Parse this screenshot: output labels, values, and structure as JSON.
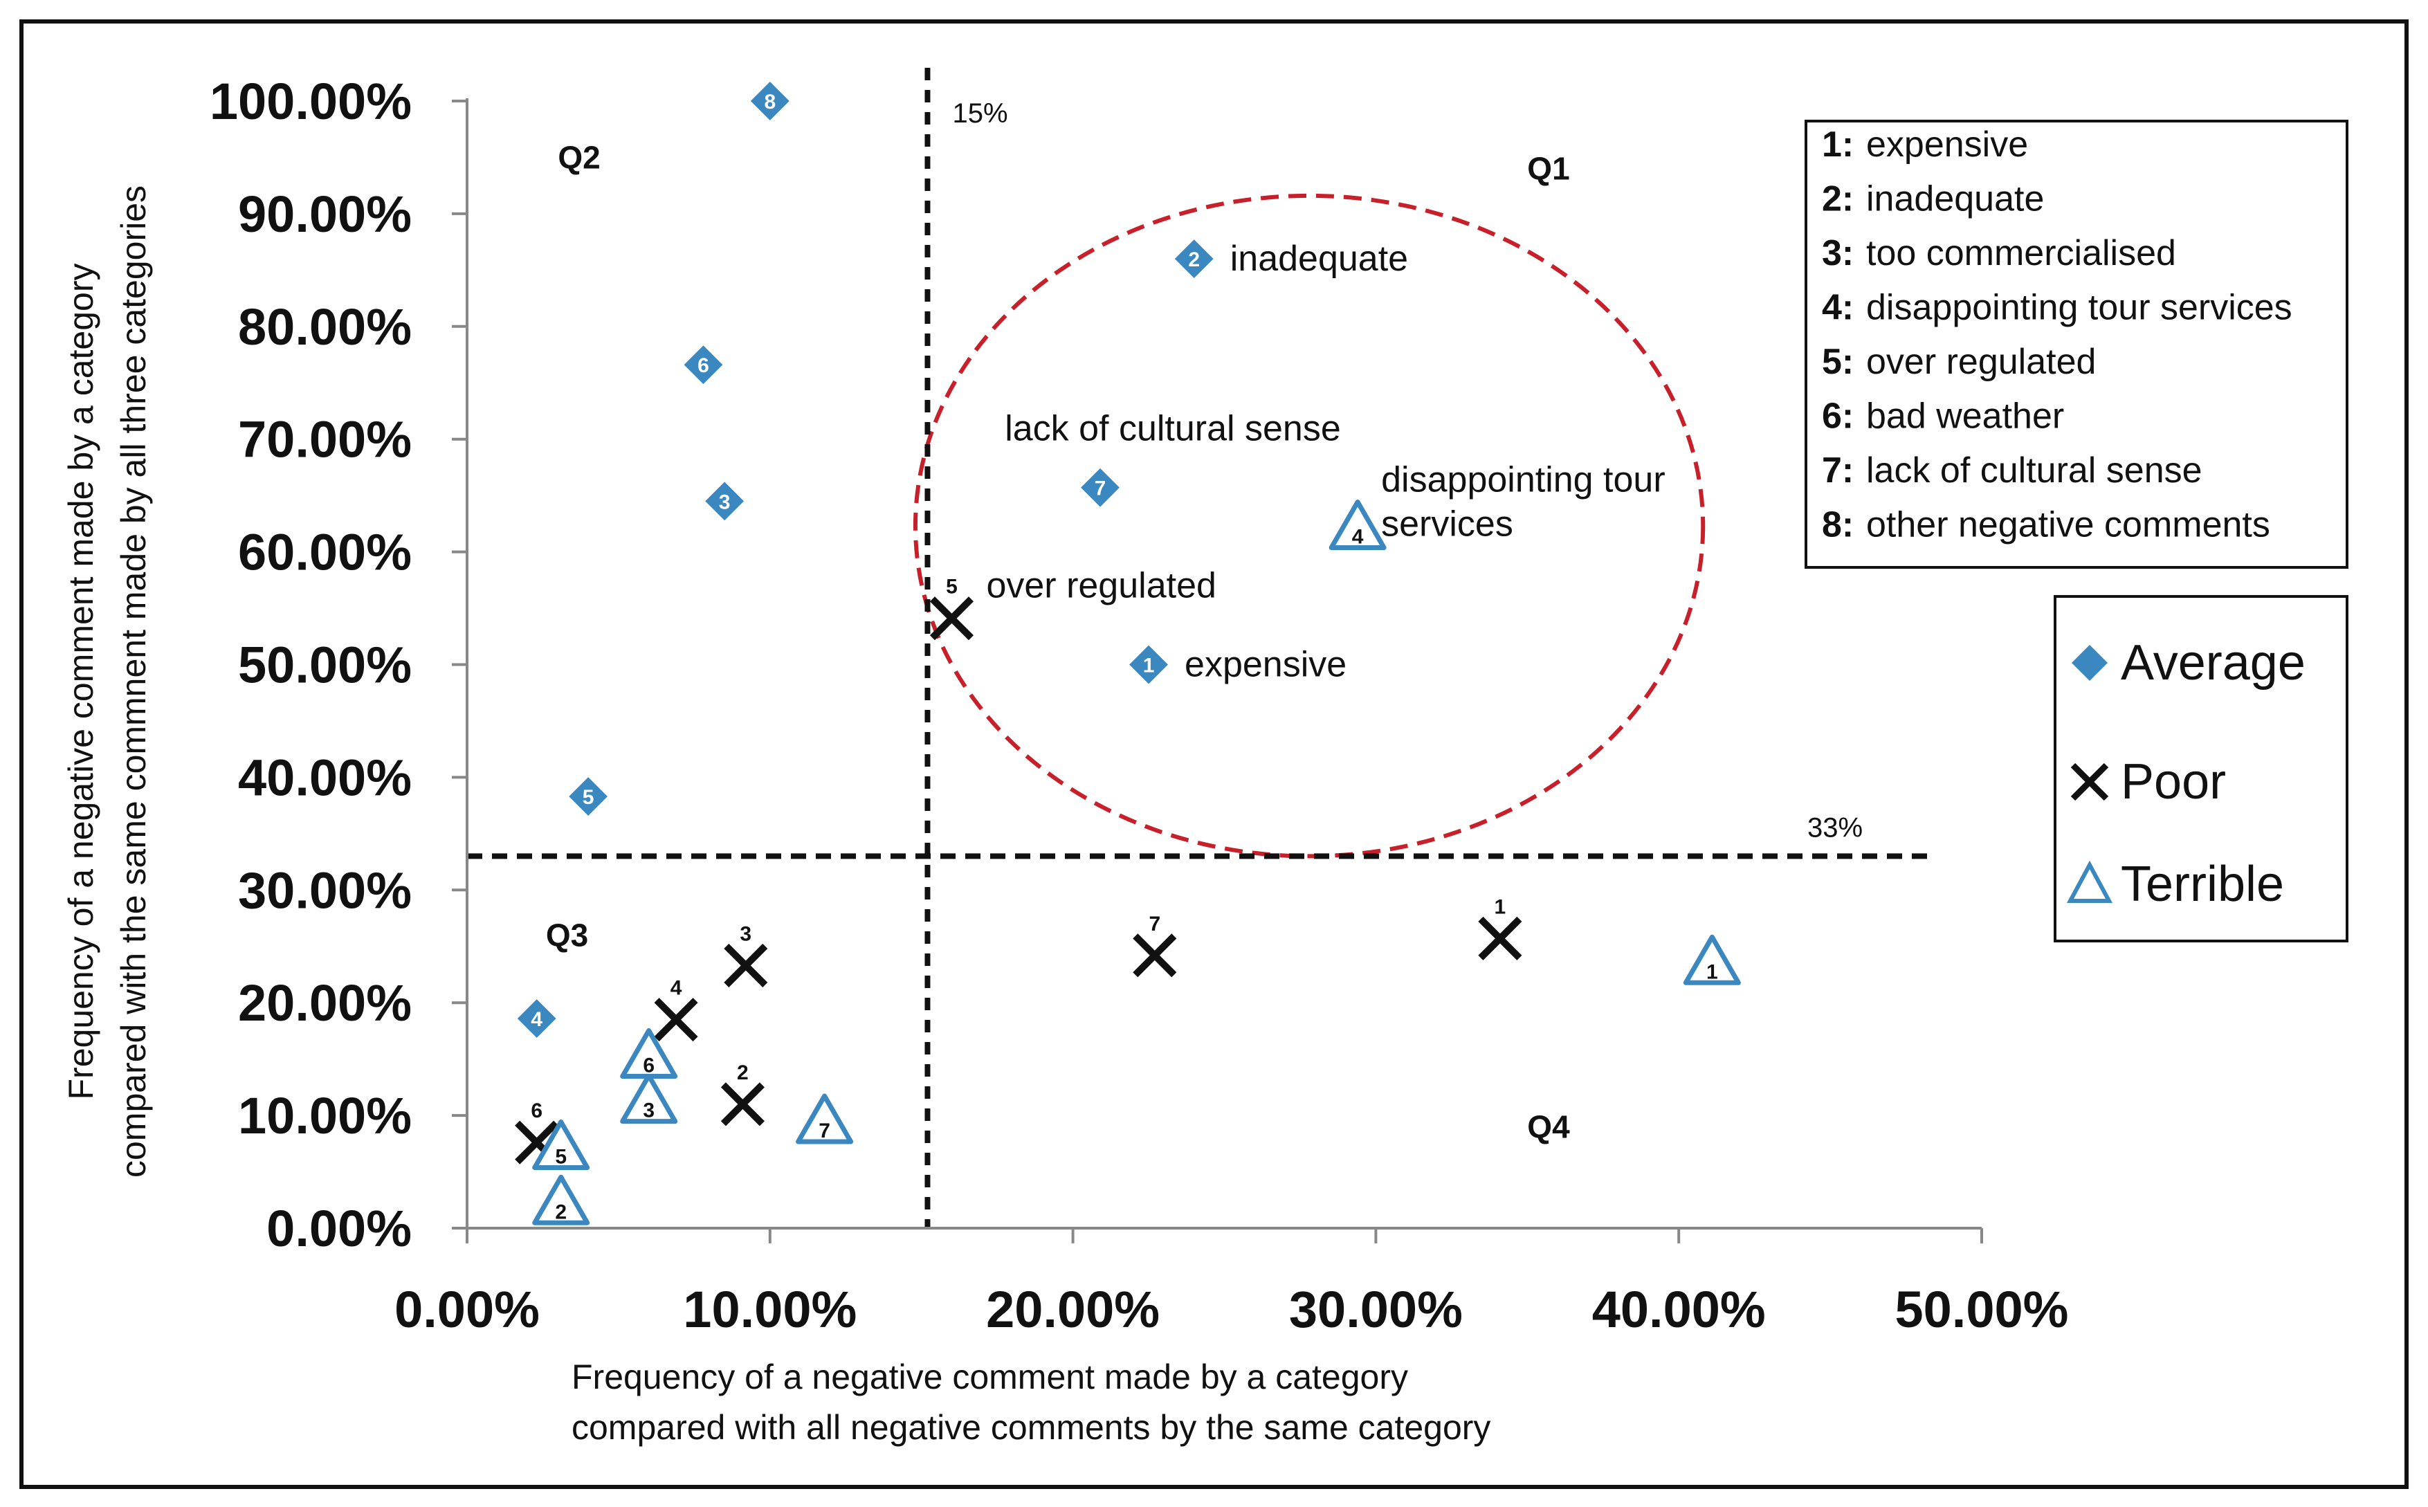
{
  "chart_data": {
    "type": "scatter",
    "title": "",
    "xlabel": [
      "Frequency of a negative comment made by a category",
      "compared with all negative comments by the same category"
    ],
    "ylabel": [
      "Frequency of a negative comment made by a category",
      "compared with the same commnent made by all three categories"
    ],
    "xlim": [
      0,
      50
    ],
    "ylim": [
      0,
      100
    ],
    "x_ticks": [
      0,
      10,
      20,
      30,
      40,
      50
    ],
    "y_ticks": [
      0,
      10,
      20,
      30,
      40,
      50,
      60,
      70,
      80,
      90,
      100
    ],
    "x_tick_labels": [
      "0.00%",
      "10.00%",
      "20.00%",
      "30.00%",
      "40.00%",
      "50.00%"
    ],
    "y_tick_labels": [
      "0.00%",
      "10.00%",
      "20.00%",
      "30.00%",
      "40.00%",
      "50.00%",
      "60.00%",
      "70.00%",
      "80.00%",
      "90.00%",
      "100.00%"
    ],
    "reference_lines": [
      {
        "orientation": "vertical",
        "value": 15.2,
        "label": "15%"
      },
      {
        "orientation": "horizontal",
        "value": 33,
        "label": "33%"
      }
    ],
    "quadrants": [
      {
        "name": "Q1",
        "x": 35,
        "y": 94
      },
      {
        "name": "Q2",
        "x": 3,
        "y": 95
      },
      {
        "name": "Q3",
        "x": 2.6,
        "y": 26
      },
      {
        "name": "Q4",
        "x": 35,
        "y": 9
      }
    ],
    "highlight_ellipse": {
      "cx": 27.8,
      "cy": 62.3,
      "rx": 13,
      "ry": 29.3,
      "color": "#c8202a"
    },
    "series": [
      {
        "name": "Average",
        "marker": "diamond",
        "color": "#3b87c0",
        "points": [
          {
            "id": "1",
            "x": 22.5,
            "y": 50,
            "annotation": "expensive"
          },
          {
            "id": "2",
            "x": 24,
            "y": 86,
            "annotation": "inadequate"
          },
          {
            "id": "3",
            "x": 8.5,
            "y": 64.5
          },
          {
            "id": "4",
            "x": 2.3,
            "y": 18.6
          },
          {
            "id": "5",
            "x": 4,
            "y": 38.3
          },
          {
            "id": "6",
            "x": 7.8,
            "y": 76.6
          },
          {
            "id": "7",
            "x": 20.9,
            "y": 65.7,
            "annotation": "lack of cultural sense"
          },
          {
            "id": "8",
            "x": 10,
            "y": 100
          }
        ]
      },
      {
        "name": "Poor",
        "marker": "x",
        "color": "#111111",
        "points": [
          {
            "id": "1",
            "x": 34.1,
            "y": 25.7
          },
          {
            "id": "2",
            "x": 9.1,
            "y": 11
          },
          {
            "id": "3",
            "x": 9.2,
            "y": 23.3
          },
          {
            "id": "4",
            "x": 6.9,
            "y": 18.5
          },
          {
            "id": "5",
            "x": 16,
            "y": 54.1,
            "annotation": "over regulated"
          },
          {
            "id": "6",
            "x": 2.3,
            "y": 7.6
          },
          {
            "id": "7",
            "x": 22.7,
            "y": 24.2
          }
        ]
      },
      {
        "name": "Terrible",
        "marker": "triangle",
        "color": "#3b87c0",
        "points": [
          {
            "id": "1",
            "x": 41.1,
            "y": 23.8
          },
          {
            "id": "2",
            "x": 3.1,
            "y": 2.5
          },
          {
            "id": "3",
            "x": 6,
            "y": 11.5
          },
          {
            "id": "4",
            "x": 29.4,
            "y": 62.4,
            "annotation": "disappointing tour services"
          },
          {
            "id": "5",
            "x": 3.1,
            "y": 7.4
          },
          {
            "id": "6",
            "x": 6,
            "y": 15.5
          },
          {
            "id": "7",
            "x": 11.8,
            "y": 9.7
          }
        ]
      }
    ],
    "category_key": [
      {
        "num": "1:",
        "label": "expensive"
      },
      {
        "num": "2:",
        "label": "inadequate"
      },
      {
        "num": "3:",
        "label": "too commercialised"
      },
      {
        "num": "4:",
        "label": "disappointing tour services"
      },
      {
        "num": "5:",
        "label": "over regulated"
      },
      {
        "num": "6:",
        "label": "bad weather"
      },
      {
        "num": "7:",
        "label": "lack of cultural sense"
      },
      {
        "num": "8:",
        "label": "other negative comments"
      }
    ],
    "legend": [
      {
        "name": "Average",
        "marker": "diamond"
      },
      {
        "name": "Poor",
        "marker": "x"
      },
      {
        "name": "Terrible",
        "marker": "triangle"
      }
    ]
  }
}
